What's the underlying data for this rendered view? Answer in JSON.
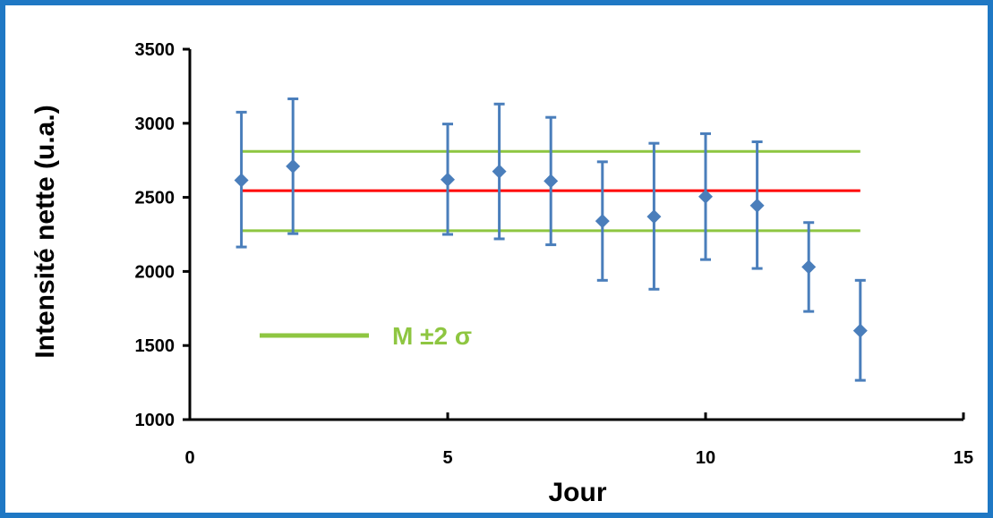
{
  "chart_data": {
    "type": "scatter",
    "xlabel": "Jour",
    "ylabel": "Intensité nette (u.a.)",
    "xlim": [
      0,
      15
    ],
    "ylim": [
      1000,
      3500
    ],
    "xticks": [
      0,
      5,
      10,
      15
    ],
    "yticks": [
      1000,
      1500,
      2000,
      2500,
      3000,
      3500
    ],
    "grid": false,
    "series": [
      {
        "type": "scatter",
        "color": "#4a7ebb",
        "marker": "diamond",
        "points": [
          {
            "x": 1,
            "y": 2615,
            "low": 2165,
            "high": 3075
          },
          {
            "x": 2,
            "y": 2710,
            "low": 2255,
            "high": 3165
          },
          {
            "x": 5,
            "y": 2620,
            "low": 2250,
            "high": 2995
          },
          {
            "x": 6,
            "y": 2675,
            "low": 2220,
            "high": 3130
          },
          {
            "x": 7,
            "y": 2610,
            "low": 2180,
            "high": 3040
          },
          {
            "x": 8,
            "y": 2340,
            "low": 1940,
            "high": 2740
          },
          {
            "x": 9,
            "y": 2370,
            "low": 1880,
            "high": 2865
          },
          {
            "x": 10,
            "y": 2505,
            "low": 2080,
            "high": 2930
          },
          {
            "x": 11,
            "y": 2445,
            "low": 2020,
            "high": 2875
          },
          {
            "x": 12,
            "y": 2030,
            "low": 1730,
            "high": 2330
          },
          {
            "x": 13,
            "y": 1600,
            "low": 1265,
            "high": 1940
          }
        ]
      }
    ],
    "reference_lines": [
      {
        "type": "mean",
        "y": 2545,
        "x_from": 1,
        "x_to": 13,
        "color": "#ff0000"
      },
      {
        "type": "upper",
        "y": 2810,
        "x_from": 1,
        "x_to": 13,
        "color": "#8ec641"
      },
      {
        "type": "lower",
        "y": 2275,
        "x_from": 1,
        "x_to": 13,
        "color": "#8ec641"
      }
    ],
    "legend": {
      "label": "M ±2 σ",
      "color": "#8ec641",
      "position": "left"
    }
  }
}
